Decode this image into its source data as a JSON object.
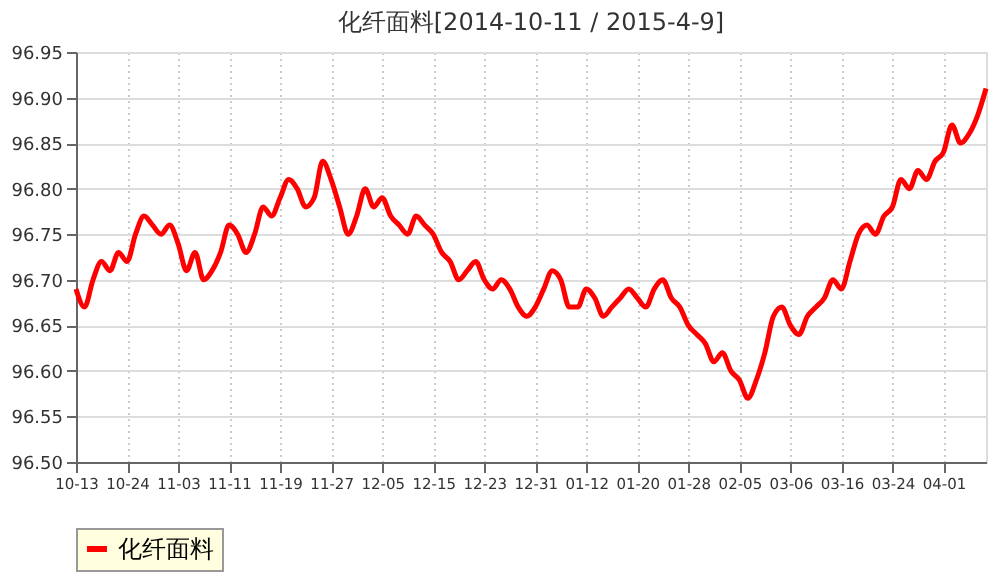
{
  "chart_data": {
    "type": "line",
    "title": "化纤面料[2014-10-11 / 2015-4-9]",
    "categories": [
      "10-13",
      null,
      null,
      null,
      null,
      null,
      "10-24",
      null,
      null,
      null,
      null,
      null,
      "11-03",
      null,
      null,
      null,
      null,
      null,
      "11-11",
      null,
      null,
      null,
      null,
      null,
      "11-19",
      null,
      null,
      null,
      null,
      null,
      "11-27",
      null,
      null,
      null,
      null,
      null,
      "12-05",
      null,
      null,
      null,
      null,
      null,
      "12-15",
      null,
      null,
      null,
      null,
      null,
      "12-23",
      null,
      null,
      null,
      null,
      null,
      "12-31",
      null,
      null,
      null,
      null,
      null,
      "01-12",
      null,
      null,
      null,
      null,
      null,
      "01-20",
      null,
      null,
      null,
      null,
      null,
      "01-28",
      null,
      null,
      null,
      null,
      null,
      "02-05",
      null,
      null,
      null,
      null,
      null,
      "03-06",
      null,
      null,
      null,
      null,
      null,
      "03-16",
      null,
      null,
      null,
      null,
      null,
      "03-24",
      null,
      null,
      null,
      null,
      null,
      "04-01",
      null,
      null,
      null,
      null,
      null
    ],
    "series": [
      {
        "name": "化纤面料",
        "color": "#ff0000",
        "values": [
          96.69,
          96.67,
          96.7,
          96.72,
          96.71,
          96.73,
          96.72,
          96.75,
          96.77,
          96.76,
          96.75,
          96.76,
          96.74,
          96.71,
          96.73,
          96.7,
          96.71,
          96.73,
          96.76,
          96.75,
          96.73,
          96.75,
          96.78,
          96.77,
          96.79,
          96.81,
          96.8,
          96.78,
          96.79,
          96.83,
          96.81,
          96.78,
          96.75,
          96.77,
          96.8,
          96.78,
          96.79,
          96.77,
          96.76,
          96.75,
          96.77,
          96.76,
          96.75,
          96.73,
          96.72,
          96.7,
          96.71,
          96.72,
          96.7,
          96.69,
          96.7,
          96.69,
          96.67,
          96.66,
          96.67,
          96.69,
          96.71,
          96.7,
          96.67,
          96.67,
          96.69,
          96.68,
          96.66,
          96.67,
          96.68,
          96.69,
          96.68,
          96.67,
          96.69,
          96.7,
          96.68,
          96.67,
          96.65,
          96.64,
          96.63,
          96.61,
          96.62,
          96.6,
          96.59,
          96.57,
          96.59,
          96.62,
          96.66,
          96.67,
          96.65,
          96.64,
          96.66,
          96.67,
          96.68,
          96.7,
          96.69,
          96.72,
          96.75,
          96.76,
          96.75,
          96.77,
          96.78,
          96.81,
          96.8,
          96.82,
          96.81,
          96.83,
          96.84,
          96.87,
          96.85,
          96.86,
          96.88,
          96.91
        ]
      }
    ],
    "ylim": [
      96.5,
      96.95
    ],
    "yticks": [
      {
        "value": 96.5,
        "label": "96.50"
      },
      {
        "value": 96.55,
        "label": "96.55"
      },
      {
        "value": 96.6,
        "label": "96.60"
      },
      {
        "value": 96.65,
        "label": "96.65"
      },
      {
        "value": 96.7,
        "label": "96.70"
      },
      {
        "value": 96.75,
        "label": "96.75"
      },
      {
        "value": 96.8,
        "label": "96.80"
      },
      {
        "value": 96.85,
        "label": "96.85"
      },
      {
        "value": 96.9,
        "label": "96.90"
      },
      {
        "value": 96.95,
        "label": "96.95"
      }
    ],
    "grid": true,
    "legend": "bottom",
    "marker": "none",
    "line_style": "solid"
  }
}
